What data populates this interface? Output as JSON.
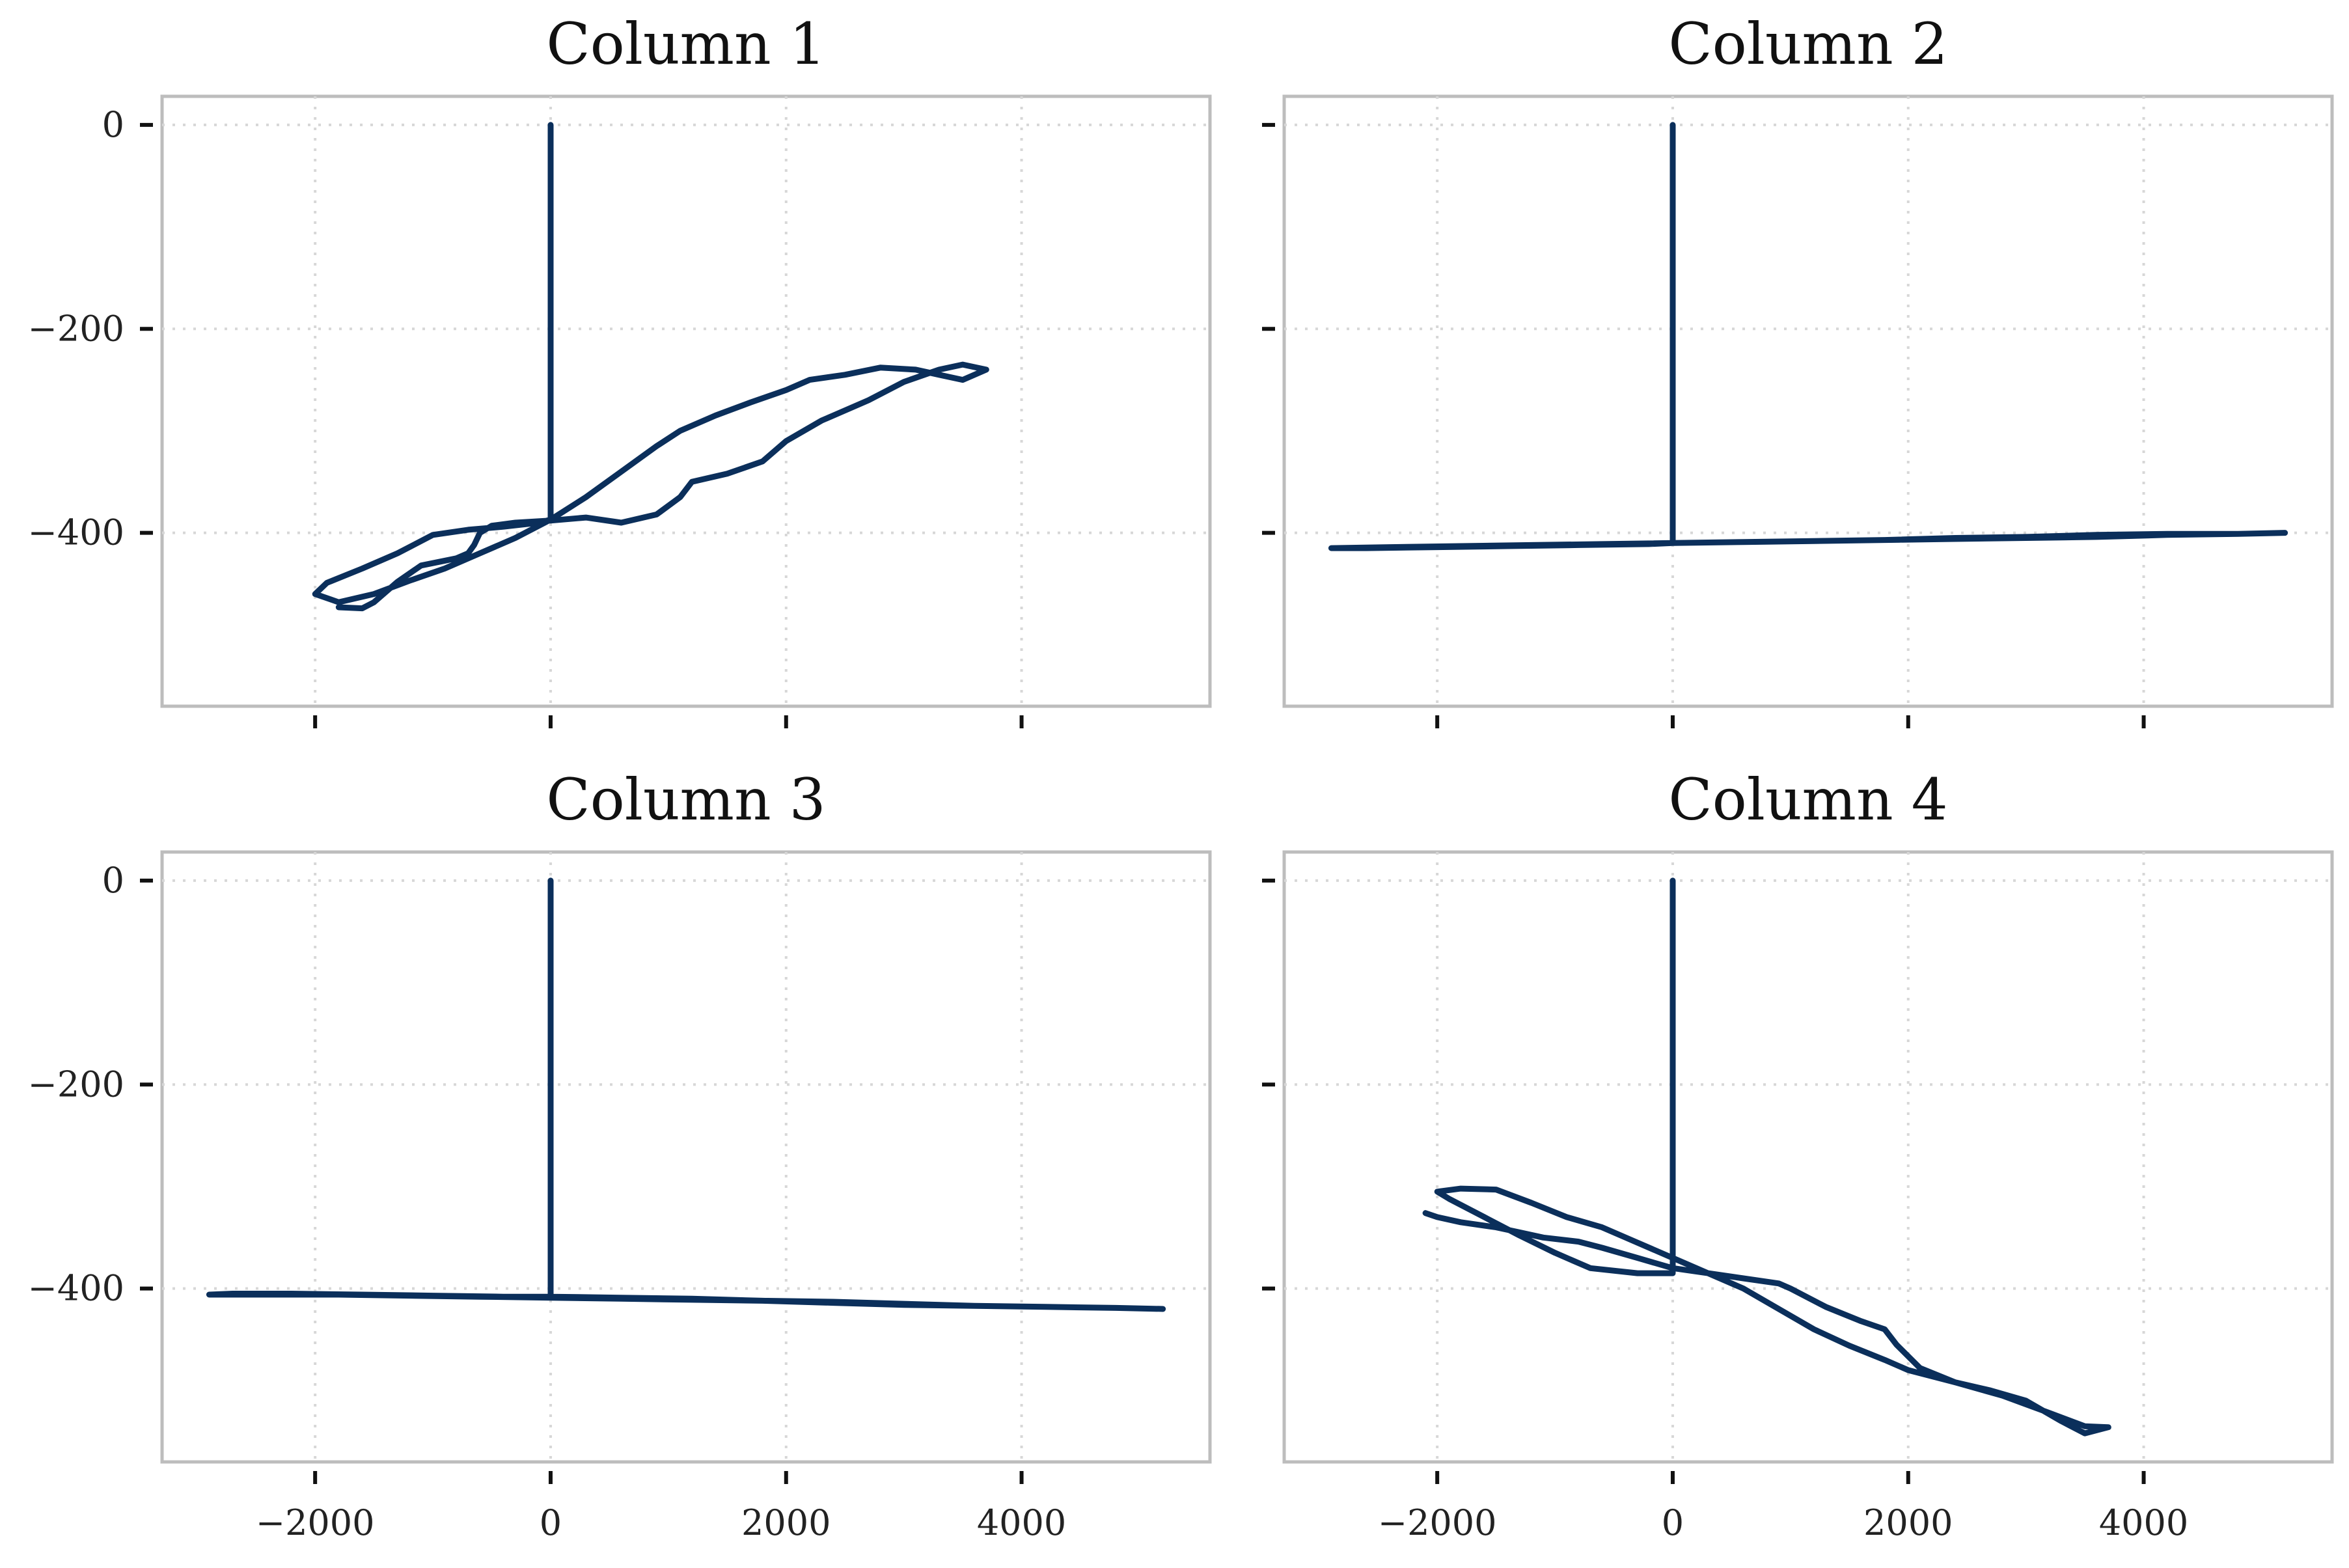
{
  "chart_data": [
    {
      "type": "line",
      "title": "Column 1",
      "x_ticks": [
        -2000,
        0,
        2000,
        4000
      ],
      "y_ticks": [
        0,
        -200,
        -400
      ],
      "x_tick_labels": [
        "",
        "",
        "",
        ""
      ],
      "y_tick_labels": [
        "0",
        "−200",
        "−400"
      ],
      "xlim": [
        -3300,
        5600
      ],
      "ylim": [
        -570,
        28
      ],
      "grid": true,
      "series": [
        {
          "color": "#0b2f5b",
          "x": [
            0,
            0,
            -100,
            -400,
            -700,
            -1000,
            -1300,
            -1600,
            -1900,
            -2000,
            -1800,
            -1500,
            -1200,
            -900,
            -600,
            -300,
            0,
            300,
            600,
            900,
            1100,
            1400,
            1700,
            2000,
            2200,
            2500,
            2800,
            3100,
            3300,
            3500,
            3700,
            3500,
            3300,
            3000,
            2700,
            2300,
            2000,
            1800,
            1500,
            1200,
            1100,
            900,
            600,
            300,
            0,
            -300,
            -500,
            -600,
            -650,
            -700,
            -800,
            -1100,
            -1300,
            -1500,
            -1600,
            -1800
          ],
          "y": [
            0,
            -387,
            -390,
            -394,
            -397,
            -402,
            -420,
            -435,
            -449,
            -460,
            -468,
            -460,
            -447,
            -435,
            -420,
            -405,
            -387,
            -365,
            -340,
            -315,
            -300,
            -285,
            -272,
            -260,
            -250,
            -245,
            -238,
            -240,
            -245,
            -250,
            -240,
            -235,
            -240,
            -252,
            -270,
            -290,
            -310,
            -330,
            -342,
            -350,
            -365,
            -382,
            -390,
            -385,
            -388,
            -390,
            -393,
            -400,
            -412,
            -420,
            -425,
            -432,
            -448,
            -468,
            -474,
            -473
          ]
        }
      ]
    },
    {
      "type": "line",
      "title": "Column 2",
      "x_ticks": [
        -2000,
        0,
        2000,
        4000
      ],
      "y_ticks": [
        0,
        -200,
        -400
      ],
      "x_tick_labels": [
        "",
        "",
        "",
        ""
      ],
      "y_tick_labels": [
        "",
        "",
        ""
      ],
      "xlim": [
        -3300,
        5600
      ],
      "ylim": [
        -570,
        28
      ],
      "grid": true,
      "series": [
        {
          "color": "#0b2f5b",
          "x": [
            0,
            0,
            600,
            1200,
            1800,
            2400,
            3000,
            3600,
            4200,
            4800,
            5200,
            4800,
            4200,
            3600,
            3000,
            2400,
            1800,
            1200,
            600,
            0,
            -600,
            -1200,
            -1800,
            -2400,
            -2900,
            -2600,
            -2000,
            -1400,
            -800,
            -200,
            0
          ],
          "y": [
            0,
            -410,
            -409,
            -408,
            -407,
            -405,
            -404,
            -402,
            -401,
            -401,
            -400,
            -401,
            -402,
            -404,
            -405,
            -406,
            -407,
            -408,
            -409,
            -410,
            -411,
            -412,
            -413,
            -414,
            -415,
            -415,
            -414,
            -413,
            -412,
            -411,
            -410
          ]
        }
      ]
    },
    {
      "type": "line",
      "title": "Column 3",
      "x_ticks": [
        -2000,
        0,
        2000,
        4000
      ],
      "y_ticks": [
        0,
        -200,
        -400
      ],
      "x_tick_labels": [
        "−2000",
        "0",
        "2000",
        "4000"
      ],
      "y_tick_labels": [
        "0",
        "−200",
        "−400"
      ],
      "xlim": [
        -3300,
        5600
      ],
      "ylim": [
        -570,
        28
      ],
      "grid": true,
      "series": [
        {
          "color": "#0b2f5b",
          "x": [
            0,
            0,
            600,
            1200,
            1800,
            2400,
            3000,
            3600,
            4200,
            4800,
            5200,
            4800,
            4200,
            3600,
            3000,
            2400,
            1800,
            1200,
            600,
            0,
            -600,
            -1200,
            -1800,
            -2400,
            -2900,
            -2700,
            -2200,
            -1600,
            -1000,
            -400,
            0
          ],
          "y": [
            0,
            -408,
            -409,
            -410,
            -412,
            -414,
            -416,
            -417,
            -418,
            -419,
            -420,
            -419,
            -418,
            -417,
            -415,
            -413,
            -412,
            -411,
            -410,
            -409,
            -408,
            -407,
            -406,
            -406,
            -406,
            -405,
            -405,
            -406,
            -407,
            -408,
            -408
          ]
        }
      ]
    },
    {
      "type": "line",
      "title": "Column 4",
      "x_ticks": [
        -2000,
        0,
        2000,
        4000
      ],
      "y_ticks": [
        0,
        -200,
        -400
      ],
      "x_tick_labels": [
        "−2000",
        "0",
        "2000",
        "4000"
      ],
      "y_tick_labels": [
        "",
        "",
        ""
      ],
      "xlim": [
        -3300,
        5600
      ],
      "ylim": [
        -570,
        28
      ],
      "grid": true,
      "series": [
        {
          "color": "#0b2f5b",
          "x": [
            0,
            0,
            -300,
            -700,
            -1000,
            -1300,
            -1600,
            -1900,
            -2000,
            -1800,
            -1500,
            -1200,
            -900,
            -600,
            -300,
            0,
            300,
            600,
            900,
            1200,
            1500,
            1800,
            2000,
            2400,
            2800,
            3200,
            3500,
            3700,
            3500,
            3300,
            3000,
            2700,
            2400,
            2100,
            1900,
            1800,
            1600,
            1300,
            1000,
            900,
            600,
            300,
            0,
            -300,
            -600,
            -800,
            -1100,
            -1300,
            -1500,
            -1800,
            -2000,
            -2100
          ],
          "y": [
            0,
            -385,
            -385,
            -380,
            -365,
            -348,
            -330,
            -312,
            -305,
            -302,
            -303,
            -316,
            -330,
            -340,
            -355,
            -370,
            -385,
            -400,
            -420,
            -440,
            -456,
            -470,
            -480,
            -492,
            -505,
            -522,
            -535,
            -536,
            -542,
            -530,
            -510,
            -500,
            -492,
            -478,
            -455,
            -440,
            -432,
            -418,
            -400,
            -395,
            -390,
            -385,
            -380,
            -370,
            -360,
            -354,
            -350,
            -345,
            -340,
            -335,
            -330,
            -326
          ]
        }
      ]
    }
  ]
}
